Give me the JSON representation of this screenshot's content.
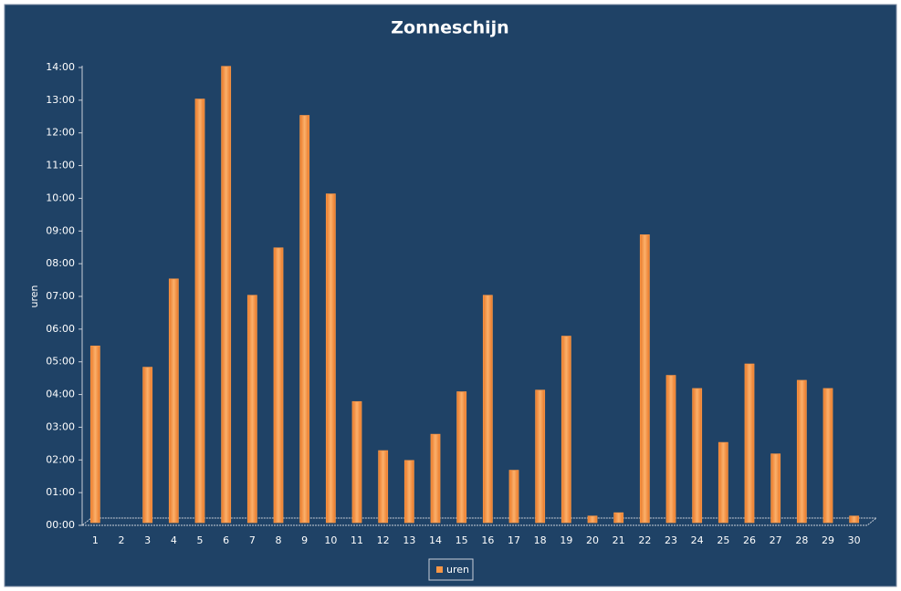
{
  "chart_data": {
    "type": "bar",
    "title": "Zonneschijn",
    "y_label": "uren",
    "categories": [
      "1",
      "2",
      "3",
      "4",
      "5",
      "6",
      "7",
      "8",
      "9",
      "10",
      "11",
      "12",
      "13",
      "14",
      "15",
      "16",
      "17",
      "18",
      "19",
      "20",
      "21",
      "22",
      "23",
      "24",
      "25",
      "26",
      "27",
      "28",
      "29",
      "30"
    ],
    "series": [
      {
        "name": "uren",
        "color": "#f79646",
        "values": [
          5.4,
          0,
          4.75,
          7.45,
          12.95,
          13.95,
          6.95,
          8.4,
          12.45,
          10.05,
          3.7,
          2.2,
          1.9,
          2.7,
          4.0,
          6.95,
          1.6,
          4.05,
          5.7,
          0.2,
          0.3,
          8.8,
          4.5,
          4.1,
          2.45,
          4.85,
          2.1,
          4.35,
          4.1,
          0.2
        ]
      }
    ],
    "ylim": [
      0,
      14
    ],
    "yticks": [
      {
        "value": 0,
        "label": "00:00"
      },
      {
        "value": 1,
        "label": "01:00"
      },
      {
        "value": 2,
        "label": "02:00"
      },
      {
        "value": 3,
        "label": "03:00"
      },
      {
        "value": 4,
        "label": "04:00"
      },
      {
        "value": 5,
        "label": "05:00"
      },
      {
        "value": 6,
        "label": "06:00"
      },
      {
        "value": 7,
        "label": "07:00"
      },
      {
        "value": 8,
        "label": "08:00"
      },
      {
        "value": 9,
        "label": "09:00"
      },
      {
        "value": 10,
        "label": "10:00"
      },
      {
        "value": 11,
        "label": "11:00"
      },
      {
        "value": 12,
        "label": "12:00"
      },
      {
        "value": 13,
        "label": "13:00"
      },
      {
        "value": 14,
        "label": "14:00"
      }
    ],
    "grid": false,
    "legend": "bottom"
  }
}
